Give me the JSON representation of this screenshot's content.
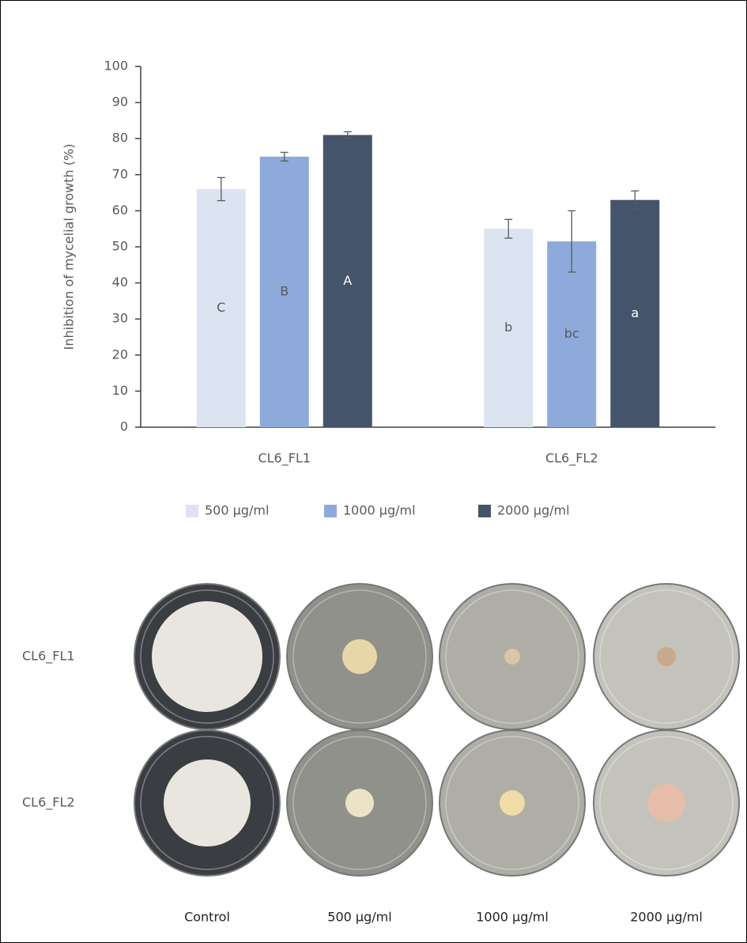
{
  "chart_data": {
    "type": "bar",
    "y_label": "Inhibition of mycelial growth (%)",
    "categories": [
      "CL6_FL1",
      "CL6_FL2"
    ],
    "series": [
      {
        "name": "500 μg/ml",
        "color": "#dce4f2",
        "values": [
          66,
          55
        ],
        "errors": [
          3.2,
          2.6
        ],
        "letters": [
          "C",
          "b"
        ]
      },
      {
        "name": "1000 μg/ml",
        "color": "#8eaadb",
        "values": [
          75,
          51.5
        ],
        "errors": [
          1.2,
          8.5
        ],
        "letters": [
          "B",
          "bc"
        ]
      },
      {
        "name": "2000 μg/ml",
        "color": "#44546a",
        "values": [
          81,
          63
        ],
        "errors": [
          0.9,
          2.5
        ],
        "letters": [
          "A",
          "a"
        ]
      }
    ],
    "ylim": [
      0,
      100
    ],
    "yticks": [
      0,
      10,
      20,
      30,
      40,
      50,
      60,
      70,
      80,
      90,
      100
    ],
    "grid": false
  },
  "plates": {
    "rows": [
      "CL6_FL1",
      "CL6_FL2"
    ],
    "columns": [
      "Control",
      "500 μg/ml",
      "1000 μg/ml",
      "2000 μg/ml"
    ]
  }
}
